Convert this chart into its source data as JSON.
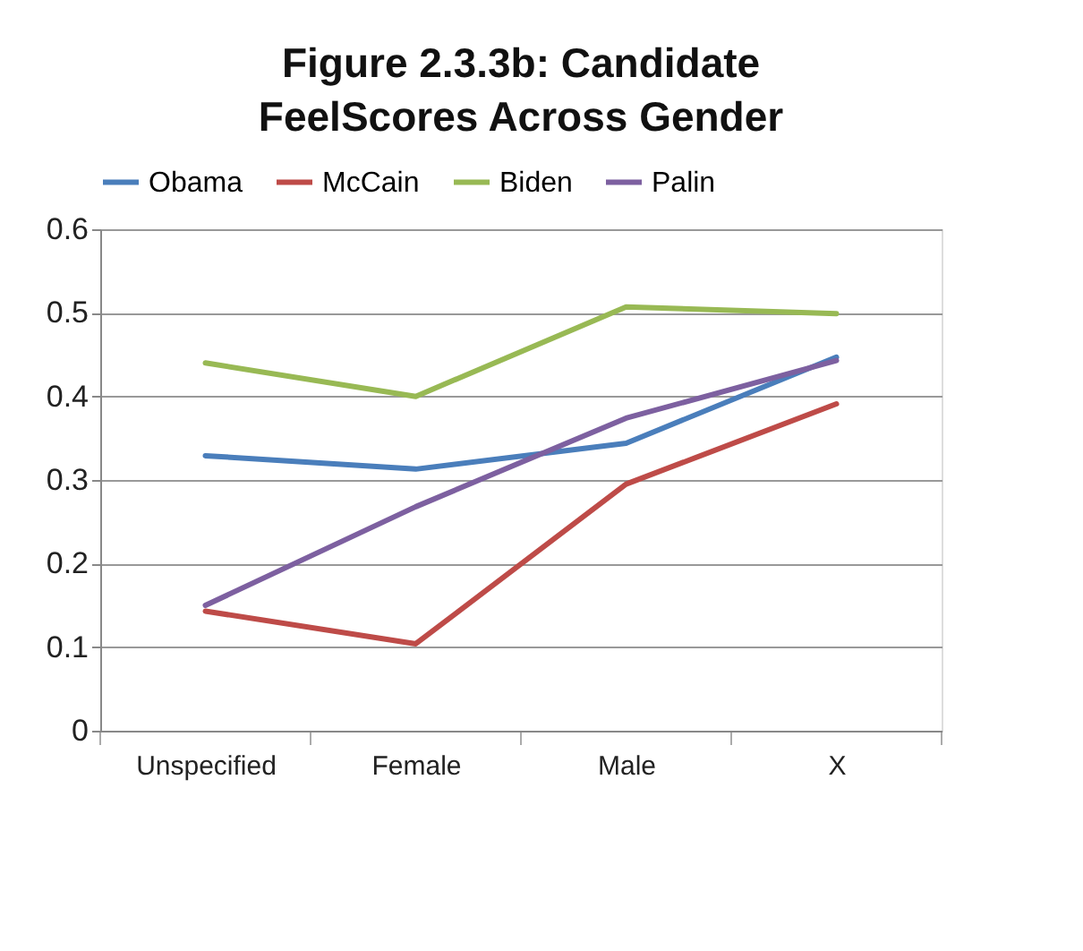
{
  "chart_data": {
    "type": "line",
    "title": "Figure 2.3.3b: Candidate FeelScores Across Gender",
    "categories": [
      "Unspecified",
      "Female",
      "Male",
      "X"
    ],
    "series": [
      {
        "name": "Obama",
        "color": "#4a7ebb",
        "values": [
          0.329,
          0.313,
          0.344,
          0.447
        ]
      },
      {
        "name": "McCain",
        "color": "#be4b48",
        "values": [
          0.143,
          0.104,
          0.295,
          0.391
        ]
      },
      {
        "name": "Biden",
        "color": "#98b954",
        "values": [
          0.44,
          0.4,
          0.507,
          0.499
        ]
      },
      {
        "name": "Palin",
        "color": "#7d60a0",
        "values": [
          0.15,
          0.268,
          0.374,
          0.443
        ]
      }
    ],
    "ylim": [
      0,
      0.6
    ],
    "yticks": [
      0,
      0.1,
      0.2,
      0.3,
      0.4,
      0.5,
      0.6
    ],
    "grid": "y",
    "legend": "top",
    "marker": "none",
    "line_style": "solid"
  }
}
